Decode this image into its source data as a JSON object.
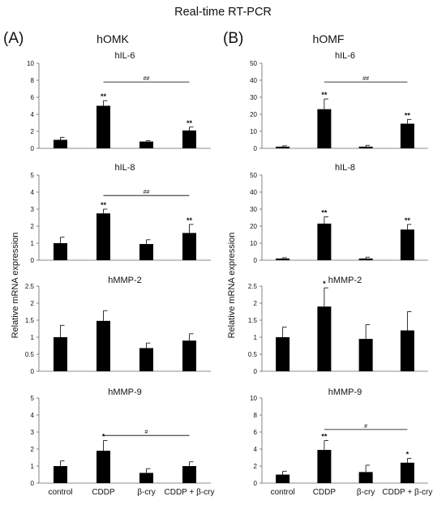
{
  "figure": {
    "title": "Real-time RT-PCR",
    "ylabel": "Relative mRNA expression",
    "panel_A": {
      "label": "(A)",
      "title": "hOMK"
    },
    "panel_B": {
      "label": "(B)",
      "title": "hOMF"
    }
  },
  "chart_data": [
    {
      "type": "bar",
      "panel": "A",
      "title": "hIL-6",
      "categories": [
        "control",
        "CDDP",
        "β-cry",
        "CDDP + β-cry"
      ],
      "ylim": [
        0,
        10
      ],
      "yticks": [
        0,
        2,
        4,
        6,
        8,
        10
      ],
      "values": [
        1.0,
        5.0,
        0.8,
        2.1
      ],
      "errors": [
        0.3,
        0.6,
        0.1,
        0.4
      ],
      "stars": [
        "",
        "**",
        "",
        "**"
      ],
      "bracket": {
        "from": 1,
        "to": 3,
        "y": 7.8,
        "label": "##"
      }
    },
    {
      "type": "bar",
      "panel": "A",
      "title": "hIL-8",
      "categories": [
        "control",
        "CDDP",
        "β-cry",
        "CDDP + β-cry"
      ],
      "ylim": [
        0,
        5
      ],
      "yticks": [
        0,
        1,
        2,
        3,
        4,
        5
      ],
      "values": [
        1.0,
        2.75,
        0.95,
        1.6
      ],
      "errors": [
        0.35,
        0.25,
        0.25,
        0.5
      ],
      "stars": [
        "",
        "**",
        "",
        "**"
      ],
      "bracket": {
        "from": 1,
        "to": 3,
        "y": 3.8,
        "label": "##"
      }
    },
    {
      "type": "bar",
      "panel": "A",
      "title": "hMMP-2",
      "categories": [
        "control",
        "CDDP",
        "β-cry",
        "CDDP + β-cry"
      ],
      "ylim": [
        0,
        2.5
      ],
      "yticks": [
        0,
        0.5,
        1,
        1.5,
        2,
        2.5
      ],
      "values": [
        1.0,
        1.48,
        0.68,
        0.9
      ],
      "errors": [
        0.35,
        0.3,
        0.15,
        0.2
      ],
      "stars": [
        "",
        "",
        "",
        ""
      ],
      "bracket": null
    },
    {
      "type": "bar",
      "panel": "A",
      "title": "hMMP-9",
      "categories": [
        "control",
        "CDDP",
        "β-cry",
        "CDDP + β-cry"
      ],
      "ylim": [
        0,
        5
      ],
      "yticks": [
        0,
        1,
        2,
        3,
        4,
        5
      ],
      "values": [
        1.0,
        1.9,
        0.6,
        1.0
      ],
      "errors": [
        0.3,
        0.6,
        0.25,
        0.25
      ],
      "stars": [
        "",
        "*",
        "",
        ""
      ],
      "bracket": {
        "from": 1,
        "to": 3,
        "y": 2.8,
        "label": "#"
      }
    },
    {
      "type": "bar",
      "panel": "B",
      "title": "hIL-6",
      "categories": [
        "control",
        "CDDP",
        "β-cry",
        "CDDP + β-cry"
      ],
      "ylim": [
        0,
        50
      ],
      "yticks": [
        0,
        10,
        20,
        30,
        40,
        50
      ],
      "values": [
        1.0,
        23.0,
        1.0,
        14.5
      ],
      "errors": [
        0.5,
        6.0,
        0.8,
        2.5
      ],
      "stars": [
        "",
        "**",
        "",
        "**"
      ],
      "bracket": {
        "from": 1,
        "to": 3,
        "y": 39,
        "label": "##"
      }
    },
    {
      "type": "bar",
      "panel": "B",
      "title": "hIL-8",
      "categories": [
        "control",
        "CDDP",
        "β-cry",
        "CDDP + β-cry"
      ],
      "ylim": [
        0,
        50
      ],
      "yticks": [
        0,
        10,
        20,
        30,
        40,
        50
      ],
      "values": [
        1.0,
        21.5,
        1.0,
        18.0
      ],
      "errors": [
        0.5,
        4.0,
        0.8,
        3.0
      ],
      "stars": [
        "",
        "**",
        "",
        "**"
      ],
      "bracket": null
    },
    {
      "type": "bar",
      "panel": "B",
      "title": "hMMP-2",
      "categories": [
        "control",
        "CDDP",
        "β-cry",
        "CDDP + β-cry"
      ],
      "ylim": [
        0,
        2.5
      ],
      "yticks": [
        0,
        0.5,
        1,
        1.5,
        2,
        2.5
      ],
      "values": [
        1.0,
        1.9,
        0.95,
        1.2
      ],
      "errors": [
        0.3,
        0.55,
        0.42,
        0.55
      ],
      "stars": [
        "",
        "*",
        "",
        ""
      ],
      "bracket": null
    },
    {
      "type": "bar",
      "panel": "B",
      "title": "hMMP-9",
      "categories": [
        "control",
        "CDDP",
        "β-cry",
        "CDDP + β-cry"
      ],
      "ylim": [
        0,
        10
      ],
      "yticks": [
        0,
        2,
        4,
        6,
        8,
        10
      ],
      "values": [
        1.0,
        3.9,
        1.3,
        2.4
      ],
      "errors": [
        0.4,
        1.1,
        0.8,
        0.5
      ],
      "stars": [
        "",
        "**",
        "",
        "*"
      ],
      "bracket": {
        "from": 1,
        "to": 3,
        "y": 6.3,
        "label": "#"
      }
    }
  ]
}
